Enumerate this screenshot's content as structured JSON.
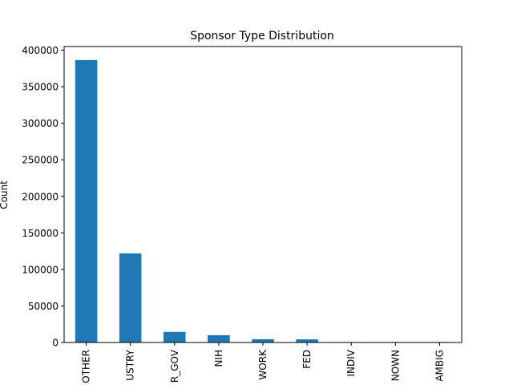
{
  "chart_data": {
    "type": "bar",
    "title": "Sponsor Type Distribution",
    "xlabel": "",
    "ylabel": "Count",
    "categories": [
      "OTHER",
      "INDUSTRY",
      "OTHER_GOV",
      "NIH",
      "NETWORK",
      "FED",
      "INDIV",
      "UNKNOWN",
      "AMBIG"
    ],
    "category_tick_labels": [
      "OTHER",
      "USTRY",
      "R_GOV",
      "NIH",
      "WORK",
      "FED",
      "INDIV",
      "NOWN",
      "AMBIG"
    ],
    "values": [
      386500,
      122000,
      14500,
      10000,
      4500,
      4300,
      300,
      150,
      50
    ],
    "ylim": [
      0,
      405000
    ],
    "yticks": [
      0,
      50000,
      100000,
      150000,
      200000,
      250000,
      300000,
      350000,
      400000
    ],
    "grid": false,
    "legend": "none",
    "bar_color": "#1f77b4"
  }
}
